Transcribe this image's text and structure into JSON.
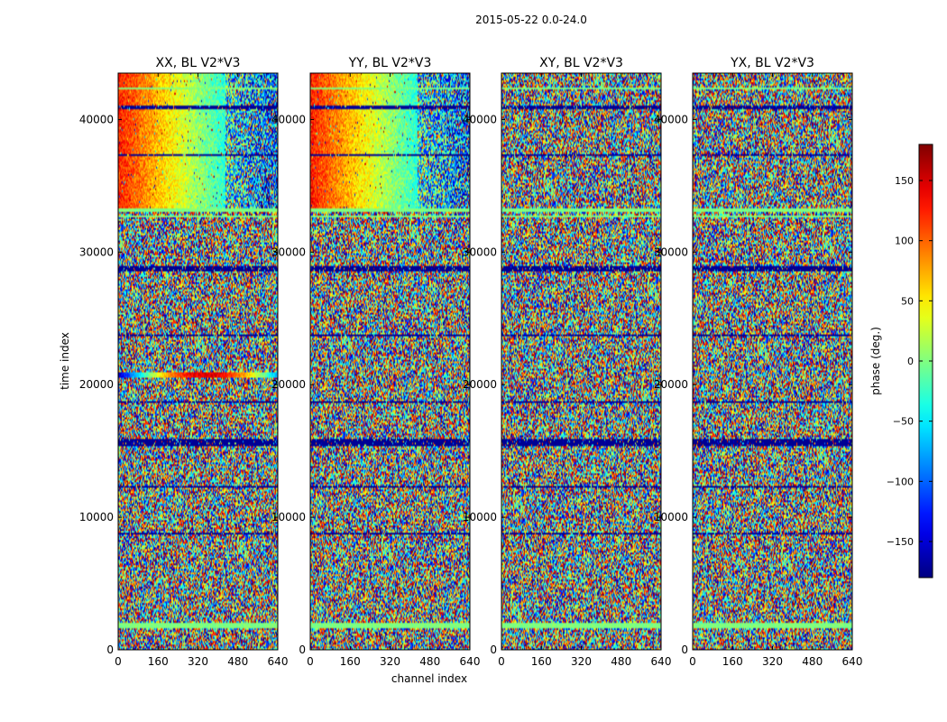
{
  "figure": {
    "suptitle": "2015-05-22 0.0-24.0"
  },
  "chart_data": {
    "type": "heatmap",
    "x_ticks": [
      0,
      160,
      320,
      480,
      640
    ],
    "y_ticks": [
      0,
      10000,
      20000,
      30000,
      40000
    ],
    "xlim": [
      0,
      640
    ],
    "ylim": [
      0,
      43500
    ],
    "xlabel": "channel index",
    "ylabel": "time index",
    "panels": [
      {
        "title": "XX, BL V2*V3",
        "coherent": true,
        "flare_band": [
          20500,
          21000
        ]
      },
      {
        "title": "YY, BL V2*V3",
        "coherent": true,
        "flare_band": null
      },
      {
        "title": "XY, BL V2*V3",
        "coherent": false,
        "flare_band": null
      },
      {
        "title": "YX, BL V2*V3",
        "coherent": false,
        "flare_band": null
      }
    ],
    "flagged_rows": [
      {
        "from": 1600,
        "to": 2000,
        "kind": "zero"
      },
      {
        "from": 5100,
        "to": 5200,
        "kind": "zero"
      },
      {
        "from": 8700,
        "to": 8900,
        "kind": "low"
      },
      {
        "from": 11100,
        "to": 11200,
        "kind": "low"
      },
      {
        "from": 12300,
        "to": 12400,
        "kind": "low"
      },
      {
        "from": 14900,
        "to": 15000,
        "kind": "low"
      },
      {
        "from": 15300,
        "to": 15900,
        "kind": "low"
      },
      {
        "from": 18600,
        "to": 18700,
        "kind": "low"
      },
      {
        "from": 19400,
        "to": 19500,
        "kind": "zero"
      },
      {
        "from": 21700,
        "to": 21800,
        "kind": "zero"
      },
      {
        "from": 23700,
        "to": 23800,
        "kind": "low"
      },
      {
        "from": 28500,
        "to": 28900,
        "kind": "low"
      },
      {
        "from": 32600,
        "to": 32800,
        "kind": "zero"
      },
      {
        "from": 33100,
        "to": 33300,
        "kind": "zero"
      },
      {
        "from": 37300,
        "to": 37400,
        "kind": "low"
      },
      {
        "from": 39100,
        "to": 39200,
        "kind": "zero"
      },
      {
        "from": 40800,
        "to": 41000,
        "kind": "low"
      },
      {
        "from": 42300,
        "to": 42400,
        "kind": "zero"
      }
    ],
    "colorbar": {
      "label": "phase (deg.)",
      "range": [
        -180,
        180
      ],
      "ticks": [
        -150,
        -100,
        -50,
        0,
        50,
        100,
        150
      ],
      "tick_labels": [
        "−150",
        "−100",
        "−50",
        "0",
        "50",
        "100",
        "150"
      ],
      "colormap": "jet"
    }
  }
}
